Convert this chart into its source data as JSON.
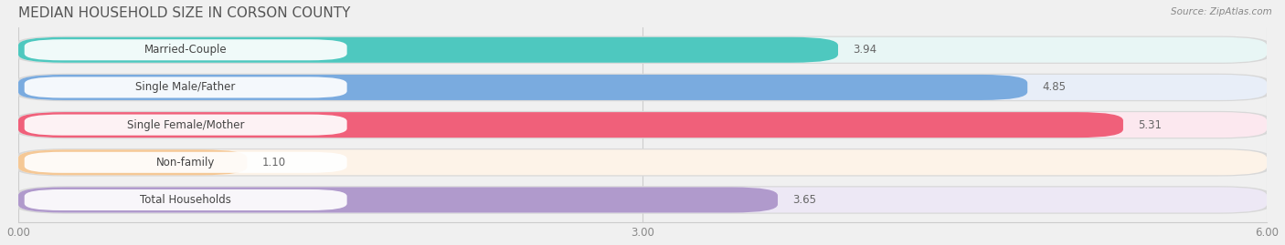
{
  "title": "MEDIAN HOUSEHOLD SIZE IN CORSON COUNTY",
  "source": "Source: ZipAtlas.com",
  "categories": [
    "Married-Couple",
    "Single Male/Father",
    "Single Female/Mother",
    "Non-family",
    "Total Households"
  ],
  "values": [
    3.94,
    4.85,
    5.31,
    1.1,
    3.65
  ],
  "bar_colors": [
    "#4ec8bf",
    "#7aabdf",
    "#f0607a",
    "#f5c896",
    "#b09acc"
  ],
  "bg_colors": [
    "#e8f6f5",
    "#e8eef8",
    "#fce8ef",
    "#fdf3e8",
    "#ede8f5"
  ],
  "value_labels": [
    "3.94",
    "4.85",
    "5.31",
    "1.10",
    "3.65"
  ],
  "xlim": [
    0,
    6.0
  ],
  "xticks": [
    0.0,
    3.0,
    6.0
  ],
  "xtick_labels": [
    "0.00",
    "3.00",
    "6.00"
  ],
  "title_fontsize": 11,
  "label_fontsize": 8.5,
  "value_fontsize": 8.5,
  "background_color": "#f0f0f0"
}
